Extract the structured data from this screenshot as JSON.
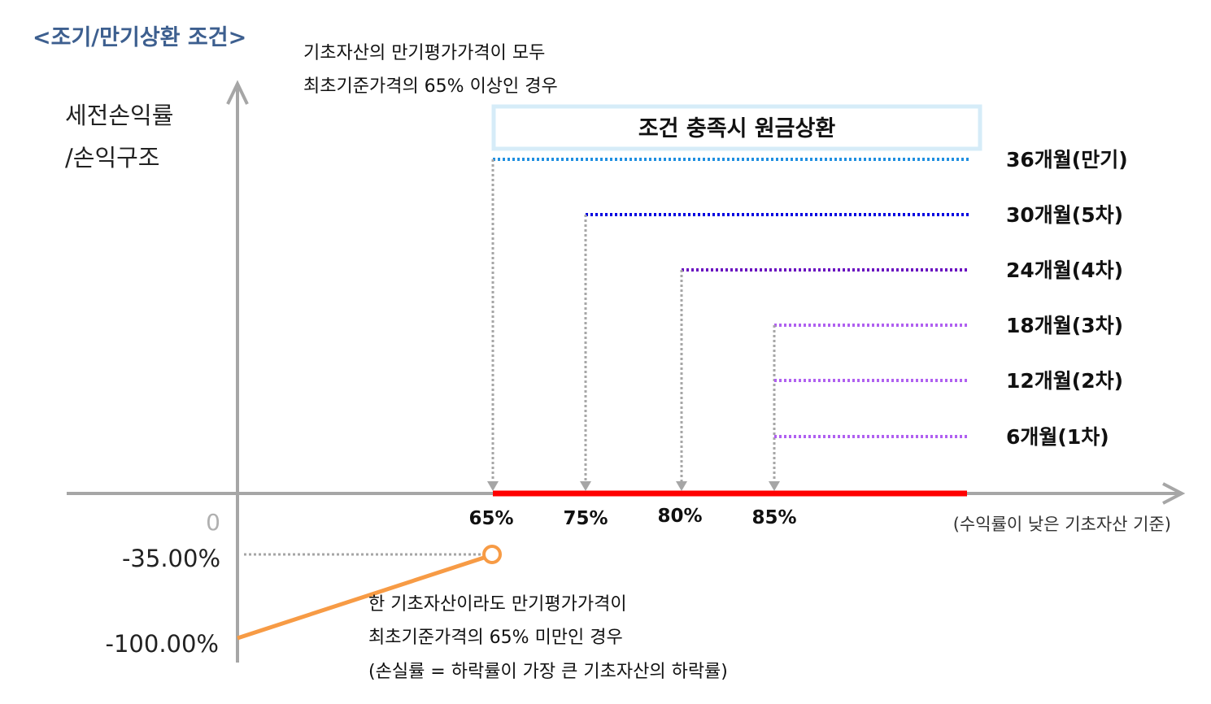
{
  "title": "<조기/만기상환 조건>",
  "y_axis_label": [
    "세전손익률",
    "/손익구조"
  ],
  "top_note": [
    "기초자산의 만기평가가격이 모두",
    "최초기준가격의 65% 이상인 경우"
  ],
  "condition_box": "조건 충족시 원금상환",
  "x_axis_note": "(수익률이 낮은 기초자산 기준)",
  "zero_label": "0",
  "y_ticks": [
    "-35.00%",
    "-100.00%"
  ],
  "barriers": [
    {
      "label": "36개월(만기)",
      "level": "65%",
      "color": "#1f8fe0"
    },
    {
      "label": "30개월(5차)",
      "level": "75%",
      "color": "#0000e0"
    },
    {
      "label": "24개월(4차)",
      "level": "80%",
      "color": "#6a10c0"
    },
    {
      "label": "18개월(3차)",
      "level": "85%",
      "color": "#b060f0"
    },
    {
      "label": "12개월(2차)",
      "level": "85%",
      "color": "#b060f0"
    },
    {
      "label": "6개월(1차)",
      "level": "85%",
      "color": "#b060f0"
    }
  ],
  "x_ticks": [
    "65%",
    "75%",
    "80%",
    "85%"
  ],
  "bottom_note": [
    "한 기초자산이라도 만기평가가격이",
    "최초기준가격의 65% 미만인 경우",
    "(손실률 = 하락률이 가장 큰 기초자산의 하락률)"
  ],
  "colors": {
    "title": "#3d5f8f",
    "axis": "#a6a6a6",
    "repay_zone": "#ff0000",
    "loss_line": "#f79b45"
  }
}
